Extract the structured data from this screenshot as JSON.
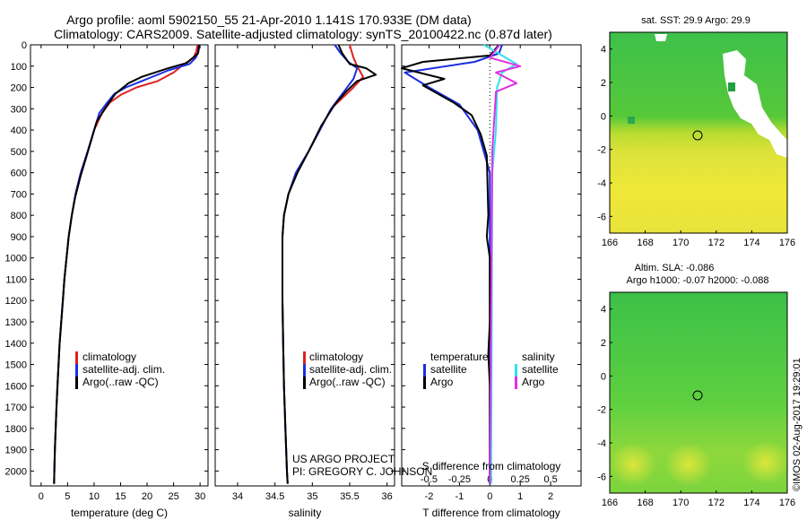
{
  "header": {
    "title_line1": "Argo profile: aoml 5902150_55 21-Apr-2010 1.141S 170.933E (DM data)",
    "title_line2": "Climatology: CARS2009. Satellite-adjusted climatology: synTS_20100422.nc (0.87d later)"
  },
  "project": {
    "line1": "US ARGO PROJECT",
    "line2": "PI: GREGORY C. JOHNSON"
  },
  "credit": "©IMOS 02-Aug-2017 19:29:01",
  "colors": {
    "climatology": "#e02020",
    "satellite": "#1a2ee0",
    "argo": "#000000",
    "sat_salinity": "#30e0f0",
    "argo_salinity": "#e030e0"
  },
  "chart_data": [
    {
      "type": "line",
      "id": "temperature",
      "xlabel": "temperature (deg C)",
      "ylabel": "",
      "xlim": [
        -2,
        31.5
      ],
      "ylim": [
        2070,
        0
      ],
      "xticks": [
        0,
        5,
        10,
        15,
        20,
        25,
        30
      ],
      "yticks": [
        0,
        100,
        200,
        300,
        400,
        500,
        600,
        700,
        800,
        900,
        1000,
        1100,
        1200,
        1300,
        1400,
        1500,
        1600,
        1700,
        1800,
        1900,
        2000
      ],
      "legend": [
        "climatology",
        "satellite-adj. clim.",
        "Argo(..raw -QC)"
      ],
      "series": [
        {
          "name": "climatology",
          "color": "#e02020",
          "points": [
            [
              29.5,
              0
            ],
            [
              29.3,
              30
            ],
            [
              28.8,
              60
            ],
            [
              27,
              90
            ],
            [
              25,
              130
            ],
            [
              22,
              170
            ],
            [
              18,
              200
            ],
            [
              15,
              235
            ],
            [
              13,
              270
            ],
            [
              11.5,
              320
            ],
            [
              10,
              400
            ],
            [
              8.8,
              500
            ],
            [
              7.5,
              600
            ],
            [
              6.5,
              700
            ],
            [
              5.8,
              800
            ],
            [
              5.2,
              900
            ],
            [
              4.8,
              1000
            ],
            [
              4.4,
              1100
            ],
            [
              4.1,
              1200
            ],
            [
              3.8,
              1300
            ],
            [
              3.5,
              1400
            ],
            [
              3.3,
              1500
            ],
            [
              3.1,
              1600
            ],
            [
              2.9,
              1700
            ],
            [
              2.75,
              1800
            ],
            [
              2.6,
              1900
            ],
            [
              2.5,
              2000
            ],
            [
              2.45,
              2060
            ]
          ]
        },
        {
          "name": "satellite-adj. clim.",
          "color": "#1a2ee0",
          "points": [
            [
              29.9,
              0
            ],
            [
              29.7,
              30
            ],
            [
              29.2,
              60
            ],
            [
              28,
              90
            ],
            [
              24,
              120
            ],
            [
              19,
              170
            ],
            [
              16,
              200
            ],
            [
              13.8,
              230
            ],
            [
              12.5,
              270
            ],
            [
              11,
              320
            ],
            [
              10,
              400
            ],
            [
              8.8,
              500
            ],
            [
              7.5,
              600
            ],
            [
              6.5,
              700
            ],
            [
              5.8,
              800
            ],
            [
              5.2,
              900
            ],
            [
              4.8,
              1000
            ],
            [
              4.4,
              1100
            ],
            [
              4.1,
              1200
            ],
            [
              3.8,
              1300
            ],
            [
              3.5,
              1400
            ],
            [
              3.3,
              1500
            ],
            [
              3.1,
              1600
            ],
            [
              2.9,
              1700
            ],
            [
              2.75,
              1800
            ],
            [
              2.6,
              1900
            ],
            [
              2.5,
              2000
            ],
            [
              2.45,
              2060
            ]
          ]
        },
        {
          "name": "Argo(..raw -QC)",
          "color": "#000000",
          "points": [
            [
              29.8,
              0
            ],
            [
              29.6,
              40
            ],
            [
              27.5,
              85
            ],
            [
              24,
              110
            ],
            [
              19,
              150
            ],
            [
              16.5,
              180
            ],
            [
              15,
              210
            ],
            [
              14,
              230
            ],
            [
              12.3,
              290
            ],
            [
              10.5,
              360
            ],
            [
              9.8,
              420
            ],
            [
              8.6,
              520
            ],
            [
              7.4,
              620
            ],
            [
              6.4,
              720
            ],
            [
              5.8,
              800
            ],
            [
              5.2,
              900
            ],
            [
              4.8,
              1000
            ],
            [
              4.4,
              1100
            ],
            [
              4.1,
              1200
            ],
            [
              3.8,
              1300
            ],
            [
              3.5,
              1400
            ],
            [
              3.3,
              1500
            ],
            [
              3.1,
              1600
            ],
            [
              2.9,
              1700
            ],
            [
              2.75,
              1800
            ],
            [
              2.6,
              1900
            ],
            [
              2.5,
              2000
            ],
            [
              2.45,
              2060
            ]
          ]
        }
      ]
    },
    {
      "type": "line",
      "id": "salinity",
      "xlabel": "salinity",
      "ylabel": "",
      "xlim": [
        33.7,
        36.1
      ],
      "ylim": [
        2070,
        0
      ],
      "xticks": [
        34,
        34.5,
        35,
        35.5,
        36
      ],
      "legend": [
        "climatology",
        "satellite-adj. clim.",
        "Argo(..raw -QC)"
      ],
      "series": [
        {
          "name": "climatology",
          "color": "#e02020",
          "points": [
            [
              35.5,
              0
            ],
            [
              35.55,
              60
            ],
            [
              35.6,
              100
            ],
            [
              35.68,
              150
            ],
            [
              35.55,
              200
            ],
            [
              35.4,
              250
            ],
            [
              35.25,
              300
            ],
            [
              35.1,
              400
            ],
            [
              34.95,
              500
            ],
            [
              34.78,
              600
            ],
            [
              34.68,
              700
            ],
            [
              34.62,
              800
            ],
            [
              34.6,
              900
            ],
            [
              34.6,
              1000
            ],
            [
              34.6,
              1200
            ],
            [
              34.61,
              1400
            ],
            [
              34.62,
              1600
            ],
            [
              34.64,
              1800
            ],
            [
              34.66,
              2000
            ],
            [
              34.67,
              2060
            ]
          ]
        },
        {
          "name": "satellite-adj. clim.",
          "color": "#1a2ee0",
          "points": [
            [
              35.3,
              0
            ],
            [
              35.38,
              40
            ],
            [
              35.48,
              80
            ],
            [
              35.6,
              110
            ],
            [
              35.55,
              160
            ],
            [
              35.4,
              230
            ],
            [
              35.25,
              300
            ],
            [
              35.1,
              400
            ],
            [
              34.95,
              500
            ],
            [
              34.78,
              600
            ],
            [
              34.68,
              700
            ],
            [
              34.62,
              800
            ],
            [
              34.6,
              900
            ],
            [
              34.6,
              1000
            ],
            [
              34.6,
              1200
            ],
            [
              34.61,
              1400
            ],
            [
              34.62,
              1600
            ],
            [
              34.64,
              1800
            ],
            [
              34.66,
              2000
            ],
            [
              34.67,
              2060
            ]
          ]
        },
        {
          "name": "Argo(..raw -QC)",
          "color": "#000000",
          "points": [
            [
              35.35,
              0
            ],
            [
              35.4,
              40
            ],
            [
              35.5,
              90
            ],
            [
              35.72,
              110
            ],
            [
              35.85,
              140
            ],
            [
              35.6,
              170
            ],
            [
              35.45,
              220
            ],
            [
              35.3,
              280
            ],
            [
              35.12,
              380
            ],
            [
              34.95,
              500
            ],
            [
              34.8,
              600
            ],
            [
              34.68,
              700
            ],
            [
              34.62,
              800
            ],
            [
              34.6,
              900
            ],
            [
              34.6,
              1000
            ],
            [
              34.6,
              1200
            ],
            [
              34.61,
              1400
            ],
            [
              34.62,
              1600
            ],
            [
              34.64,
              1800
            ],
            [
              34.66,
              2000
            ],
            [
              34.67,
              2060
            ]
          ]
        }
      ]
    },
    {
      "type": "line",
      "id": "differences",
      "xlabel": "T difference from climatology",
      "xlabel_top": "S difference from climatology",
      "ylabel": "",
      "xlim": [
        -2.9,
        3.0
      ],
      "ylim": [
        2070,
        0
      ],
      "xticks": [
        -2,
        -1,
        0,
        1,
        2
      ],
      "sticks": [
        -0.5,
        -0.25,
        0,
        0.25,
        0.5
      ],
      "stick_labels": [
        "-0.5",
        "-0.25",
        "0",
        "0.25",
        "0.5"
      ],
      "s_scale": 4,
      "legend_headers": [
        "temperature",
        "salinity"
      ],
      "legend": [
        "satellite",
        "Argo",
        "satellite",
        "Argo"
      ],
      "series": [
        {
          "name": "T satellite",
          "color": "#1a2ee0",
          "points": [
            [
              0.4,
              0
            ],
            [
              0.3,
              40
            ],
            [
              -0.5,
              80
            ],
            [
              -2.8,
              130
            ],
            [
              -2,
              200
            ],
            [
              -1,
              280
            ],
            [
              -0.4,
              400
            ],
            [
              -0.2,
              500
            ],
            [
              0,
              600
            ],
            [
              0,
              2060
            ]
          ]
        },
        {
          "name": "T Argo",
          "color": "#000000",
          "points": [
            [
              0.3,
              0
            ],
            [
              0,
              50
            ],
            [
              -2.2,
              80
            ],
            [
              -2.9,
              110
            ],
            [
              -1.5,
              160
            ],
            [
              -2.2,
              190
            ],
            [
              -1.2,
              270
            ],
            [
              -0.6,
              330
            ],
            [
              -0.3,
              420
            ],
            [
              -0.1,
              520
            ],
            [
              -0.05,
              800
            ],
            [
              -0.1,
              900
            ],
            [
              0,
              1000
            ],
            [
              0,
              1300
            ],
            [
              -0.05,
              1450
            ],
            [
              0,
              1600
            ],
            [
              0,
              2060
            ]
          ]
        },
        {
          "name": "S satellite",
          "color": "#30e0f0",
          "points": [
            [
              -0.05,
              0
            ],
            [
              0.1,
              50
            ],
            [
              0.22,
              90
            ],
            [
              0.1,
              130
            ],
            [
              0.06,
              200
            ],
            [
              0.05,
              400
            ],
            [
              0.02,
              600
            ],
            [
              0.01,
              2060
            ]
          ]
        },
        {
          "name": "S Argo",
          "color": "#e030e0",
          "points": [
            [
              0.08,
              0
            ],
            [
              0.0,
              60
            ],
            [
              0.25,
              100
            ],
            [
              0.05,
              130
            ],
            [
              0.22,
              180
            ],
            [
              0.05,
              220
            ],
            [
              0.02,
              500
            ],
            [
              0,
              2060
            ]
          ]
        }
      ]
    },
    {
      "type": "heatmap",
      "id": "sst-map",
      "title": "sat. SST: 29.9 Argo: 29.9",
      "xlim": [
        166,
        176
      ],
      "ylim": [
        -7,
        5
      ],
      "xticks": [
        166,
        168,
        170,
        172,
        174,
        176
      ],
      "yticks": [
        -6,
        -4,
        -2,
        0,
        2,
        4
      ],
      "marker": [
        170.933,
        -1.141
      ]
    },
    {
      "type": "heatmap",
      "id": "sla-map",
      "title_line1": "Altim. SLA: -0.086",
      "title_line2": "Argo h1000: -0.07 h2000: -0.088",
      "xlim": [
        166,
        176
      ],
      "ylim": [
        -7,
        5
      ],
      "xticks": [
        166,
        168,
        170,
        172,
        174,
        176
      ],
      "yticks": [
        -6,
        -4,
        -2,
        0,
        2,
        4
      ],
      "marker": [
        170.933,
        -1.141
      ]
    }
  ]
}
